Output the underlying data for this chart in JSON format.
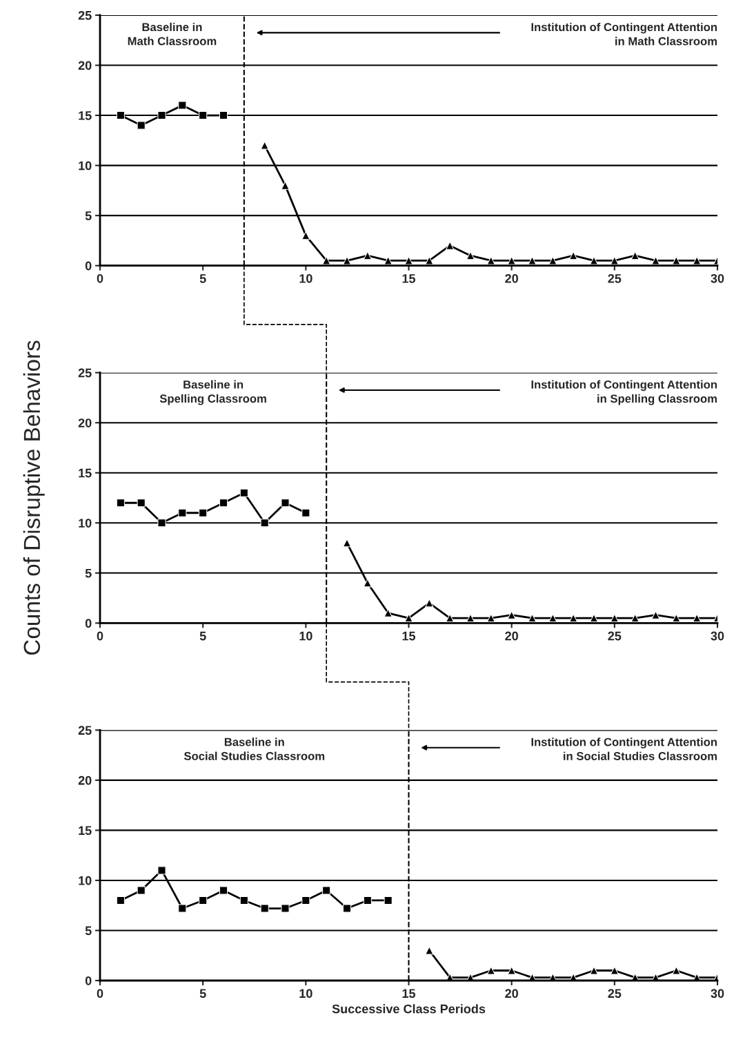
{
  "chart_data": [
    {
      "type": "line",
      "xlim": [
        0,
        30
      ],
      "xticks": [
        0,
        5,
        10,
        15,
        20,
        25,
        30
      ],
      "ylim": [
        0,
        25
      ],
      "yticks": [
        0,
        5,
        10,
        15,
        20,
        25
      ],
      "grid": "y",
      "legend": false,
      "series": [
        {
          "color": "#000000",
          "marker": "square",
          "x": [
            1,
            2,
            3,
            4,
            5,
            6
          ],
          "values": [
            15,
            14,
            15,
            16,
            15,
            15
          ]
        },
        {
          "color": "#000000",
          "marker": "triangle",
          "x": [
            8,
            9,
            10,
            11,
            12,
            13,
            14,
            15,
            16,
            17,
            18,
            19,
            20,
            21,
            22,
            23,
            24,
            25,
            26,
            27,
            28,
            29,
            30
          ],
          "values": [
            12,
            8,
            3,
            0.5,
            0.5,
            1,
            0.5,
            0.5,
            0.5,
            2,
            1,
            0.5,
            0.5,
            0.5,
            0.5,
            1,
            0.5,
            0.5,
            1,
            0.5,
            0.5,
            0.5,
            0.5
          ]
        }
      ],
      "ref_lines": [
        {
          "axis": "x",
          "value": 7,
          "label": "Institution of Contingent Attention\nin Math Classroom",
          "line_style": "dashed"
        }
      ],
      "annotations": [
        "Baseline in\nMath Classroom"
      ]
    },
    {
      "type": "line",
      "xlim": [
        0,
        30
      ],
      "xticks": [
        0,
        5,
        10,
        15,
        20,
        25,
        30
      ],
      "ylim": [
        0,
        25
      ],
      "yticks": [
        0,
        5,
        10,
        15,
        20,
        25
      ],
      "grid": "y",
      "legend": false,
      "ylabel": "Counts of Disruptive Behaviors",
      "series": [
        {
          "color": "#000000",
          "marker": "square",
          "x": [
            1,
            2,
            3,
            4,
            5,
            6,
            7,
            8,
            9,
            10
          ],
          "values": [
            12,
            12,
            10,
            11,
            11,
            12,
            13,
            10,
            12,
            11
          ]
        },
        {
          "color": "#000000",
          "marker": "triangle",
          "x": [
            12,
            13,
            14,
            15,
            16,
            17,
            18,
            19,
            20,
            21,
            22,
            23,
            24,
            25,
            26,
            27,
            28,
            29,
            30
          ],
          "values": [
            8,
            4,
            1,
            0.5,
            2,
            0.5,
            0.5,
            0.5,
            0.8,
            0.5,
            0.5,
            0.5,
            0.5,
            0.5,
            0.5,
            0.8,
            0.5,
            0.5,
            0.5
          ]
        }
      ],
      "ref_lines": [
        {
          "axis": "x",
          "value": 11,
          "label": "Institution of Contingent Attention\nin Spelling Classroom",
          "line_style": "dashed"
        }
      ],
      "annotations": [
        "Baseline in\nSpelling Classroom"
      ]
    },
    {
      "type": "line",
      "xlim": [
        0,
        30
      ],
      "xticks": [
        0,
        5,
        10,
        15,
        20,
        25,
        30
      ],
      "ylim": [
        0,
        25
      ],
      "yticks": [
        0,
        5,
        10,
        15,
        20,
        25
      ],
      "grid": "y",
      "legend": false,
      "xlabel": "Successive Class Periods",
      "series": [
        {
          "color": "#000000",
          "marker": "square",
          "x": [
            1,
            2,
            3,
            4,
            5,
            6,
            7,
            8,
            9,
            10,
            11,
            12,
            13,
            14
          ],
          "values": [
            8,
            9,
            11,
            7.2,
            8,
            9,
            8,
            7.2,
            7.2,
            8,
            9,
            7.2,
            8,
            8
          ]
        },
        {
          "color": "#000000",
          "marker": "triangle",
          "x": [
            16,
            17,
            18,
            19,
            20,
            21,
            22,
            23,
            24,
            25,
            26,
            27,
            28,
            29,
            30
          ],
          "values": [
            3,
            0.3,
            0.3,
            1,
            1,
            0.3,
            0.3,
            0.3,
            1,
            1,
            0.3,
            0.3,
            1,
            0.3,
            0.3
          ]
        }
      ],
      "ref_lines": [
        {
          "axis": "x",
          "value": 15,
          "label": "Institution of Contingent Attention\nin Social Studies Classroom",
          "line_style": "dashed"
        }
      ],
      "annotations": [
        "Baseline in\nSocial Studies Classroom"
      ]
    }
  ]
}
